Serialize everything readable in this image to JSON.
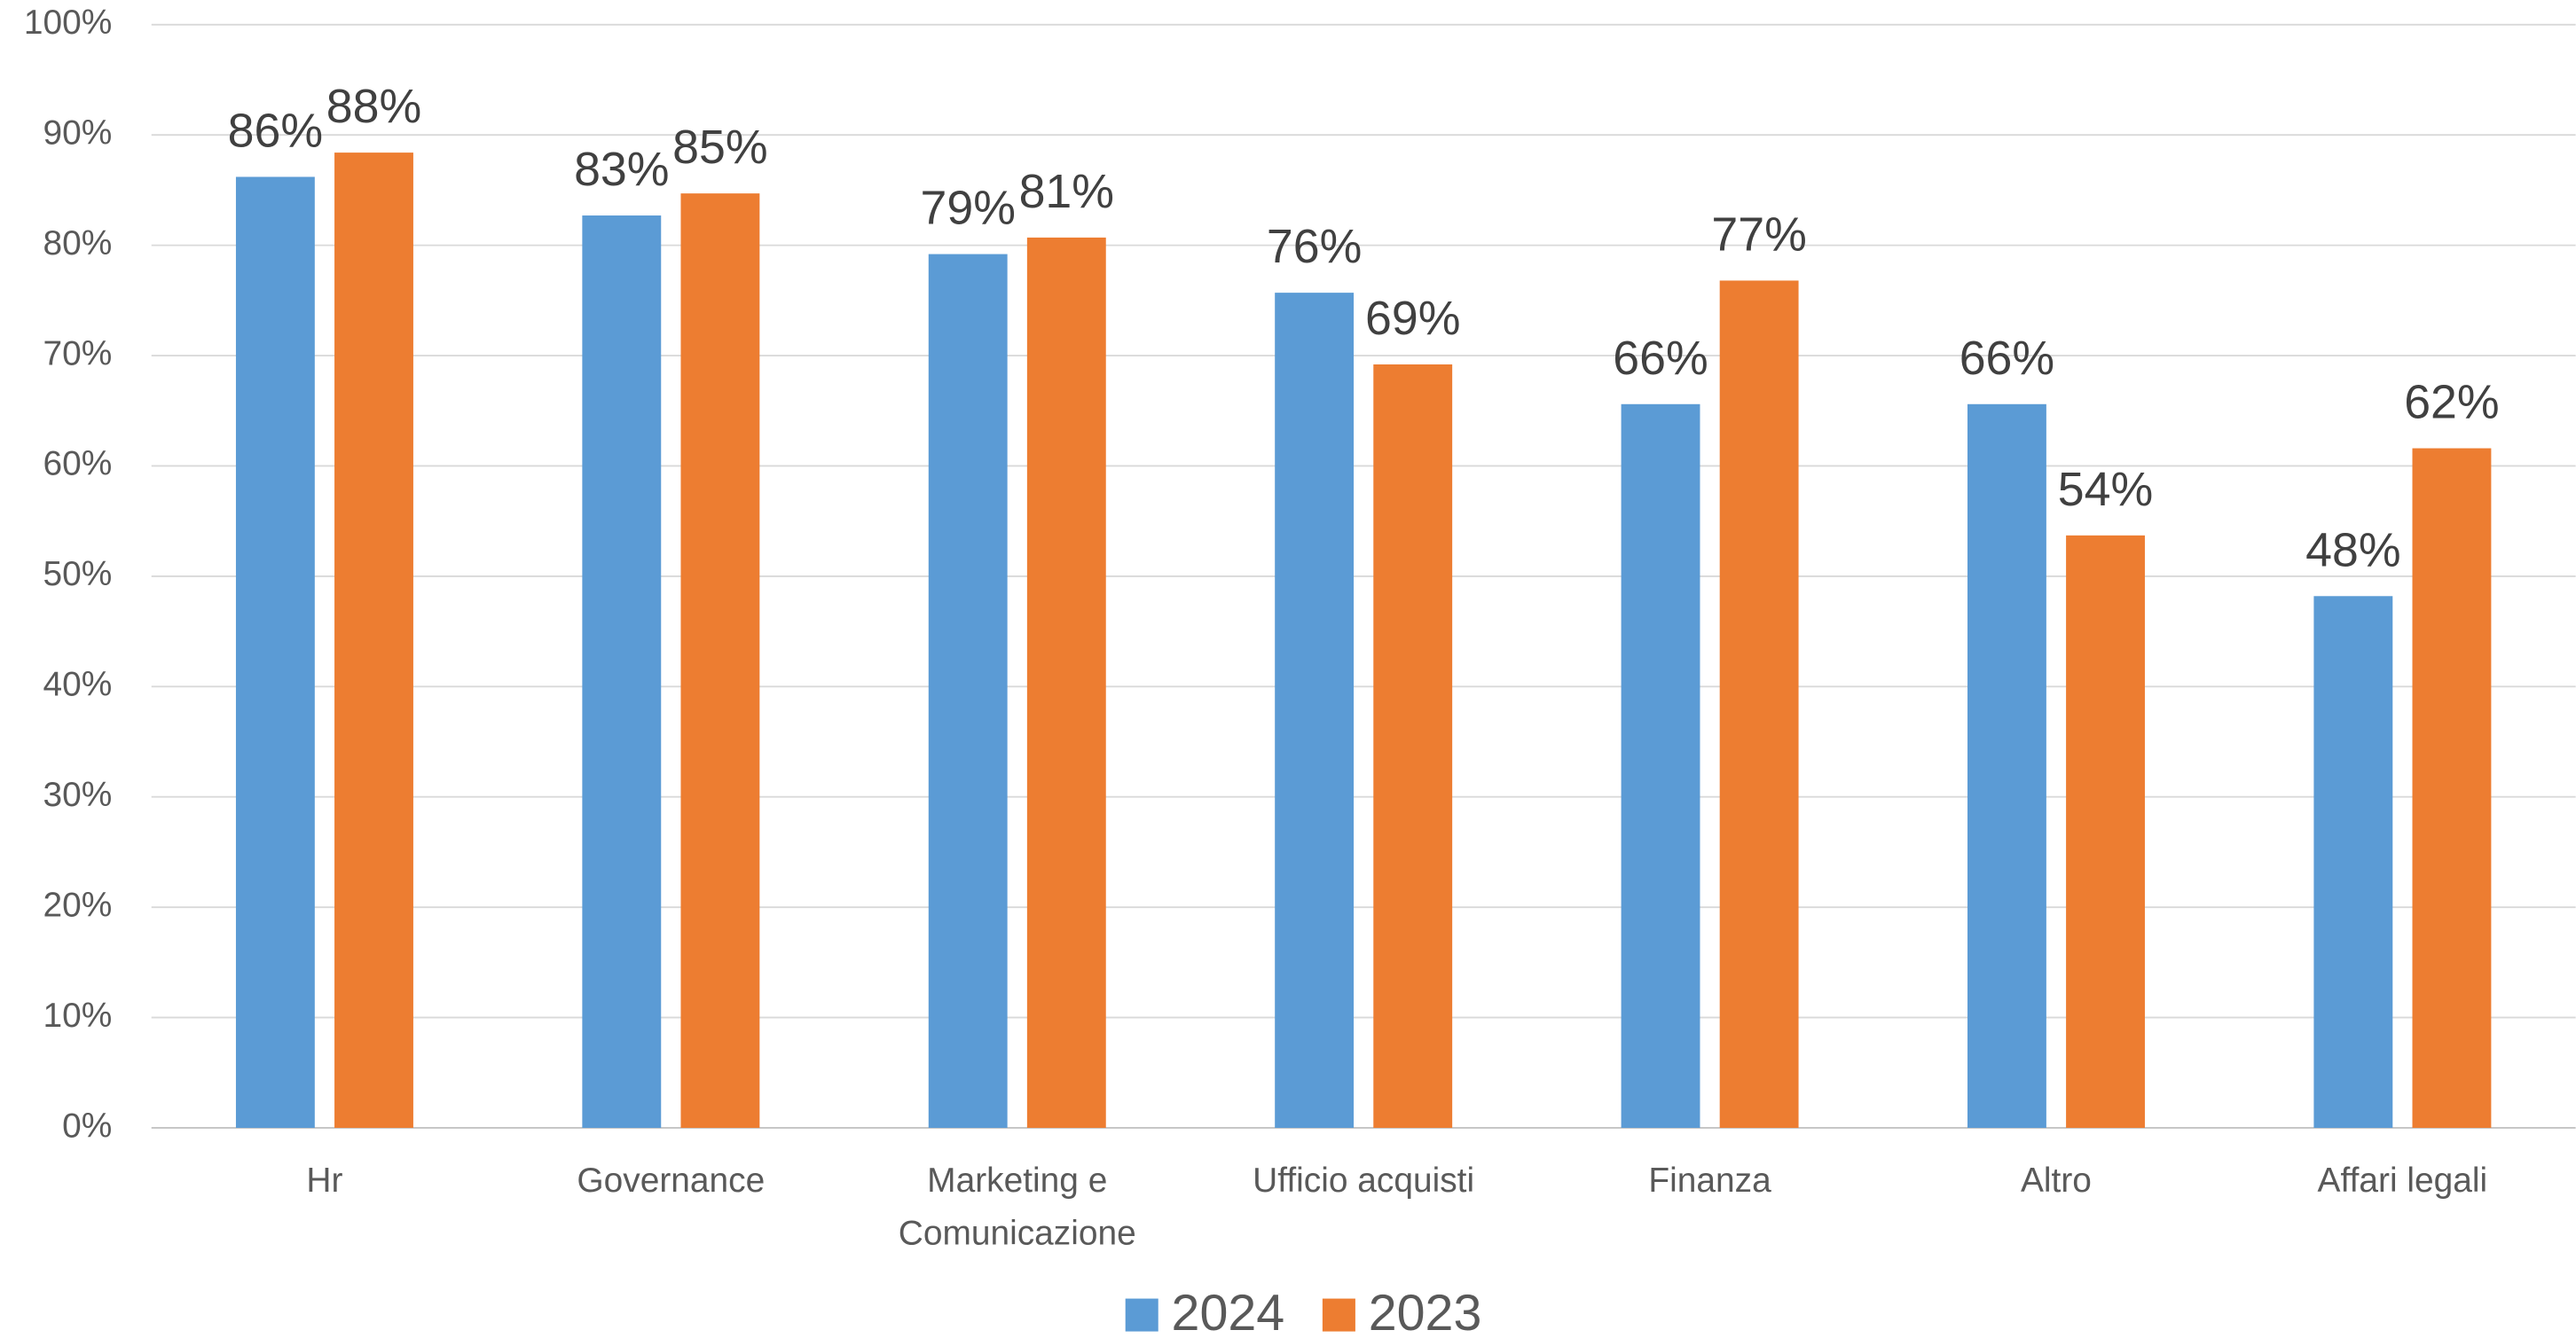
{
  "chart_data": {
    "type": "bar",
    "categories": [
      "Hr",
      "Governance",
      "Marketing e Comunicazione",
      "Ufficio acquisti",
      "Finanza",
      "Altro",
      "Affari legali"
    ],
    "series": [
      {
        "name": "2024",
        "color": "#5b9bd5",
        "values": [
          86.2,
          82.7,
          79.2,
          75.7,
          65.6,
          65.6,
          48.2
        ],
        "value_labels": [
          "86%",
          "83%",
          "79%",
          "76%",
          "66%",
          "66%",
          "48%"
        ]
      },
      {
        "name": "2023",
        "color": "#ed7d31",
        "values": [
          88.4,
          84.7,
          80.7,
          69.2,
          76.8,
          53.7,
          61.6
        ],
        "value_labels": [
          "88%",
          "85%",
          "81%",
          "69%",
          "77%",
          "54%",
          "62%"
        ]
      }
    ],
    "ylim": [
      0,
      100
    ],
    "yticks": [
      {
        "value": 0,
        "label": "0%"
      },
      {
        "value": 10,
        "label": "10%"
      },
      {
        "value": 20,
        "label": "20%"
      },
      {
        "value": 30,
        "label": "30%"
      },
      {
        "value": 40,
        "label": "40%"
      },
      {
        "value": 50,
        "label": "50%"
      },
      {
        "value": 60,
        "label": "60%"
      },
      {
        "value": 70,
        "label": "70%"
      },
      {
        "value": 80,
        "label": "80%"
      },
      {
        "value": 90,
        "label": "90%"
      },
      {
        "value": 100,
        "label": "100%"
      }
    ],
    "grid": true,
    "legend": "bottom"
  }
}
